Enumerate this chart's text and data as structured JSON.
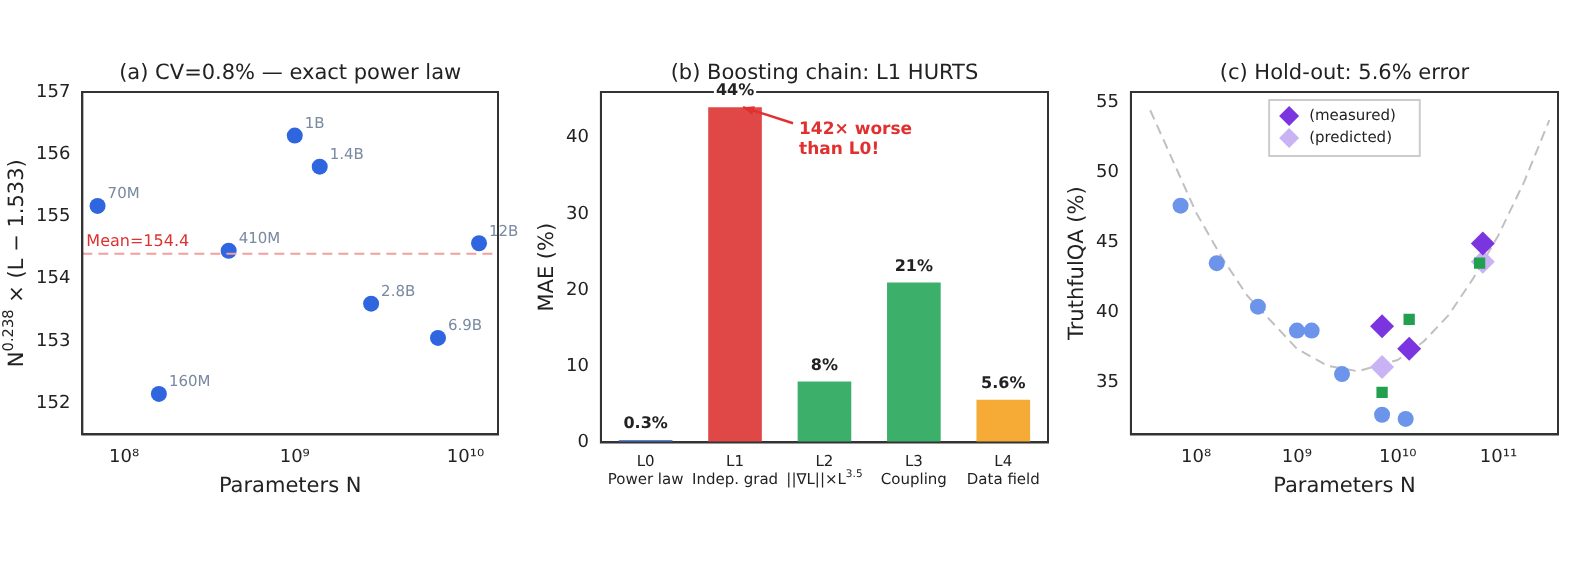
{
  "chart_data": [
    {
      "type": "scatter",
      "title": "(a) CV=0.8% — exact power law",
      "xlabel": "Parameters N",
      "ylabel": "N$^{0.238}$ × (L − 1.533)",
      "log": "x",
      "marker": "circle",
      "color": "#2f66e0",
      "x": [
        70000000,
        160000000,
        410000000,
        1000000000,
        1400000000,
        2800000000,
        6900000000,
        12000000000
      ],
      "values": [
        155.17,
        152.15,
        154.45,
        156.3,
        155.8,
        153.6,
        153.05,
        154.57
      ],
      "xlim": [
        57000000,
        15500000000
      ],
      "xticks": [
        {
          "value": 100000000,
          "label": "10⁸"
        },
        {
          "value": 1000000000,
          "label": "10⁹"
        },
        {
          "value": 10000000000,
          "label": "10¹⁰"
        }
      ],
      "ylim": [
        151.5,
        157
      ],
      "yticks": [
        152,
        153,
        154,
        155,
        156,
        157
      ],
      "ref_lines": [
        {
          "axis": "y",
          "value": 154.4,
          "label": "Mean=154.4",
          "color": "#f4a0a0",
          "line_style": "dashed"
        }
      ],
      "annotations": [
        {
          "text": "70M",
          "x": 70000000,
          "y": 155.17
        },
        {
          "text": "160M",
          "x": 160000000,
          "y": 152.15
        },
        {
          "text": "410M",
          "x": 410000000,
          "y": 154.45
        },
        {
          "text": "1B",
          "x": 1000000000,
          "y": 156.3
        },
        {
          "text": "1.4B",
          "x": 1400000000,
          "y": 155.8
        },
        {
          "text": "2.8B",
          "x": 2800000000,
          "y": 153.6
        },
        {
          "text": "6.9B",
          "x": 6900000000,
          "y": 153.05
        },
        {
          "text": "12B",
          "x": 12000000000,
          "y": 154.57
        }
      ]
    },
    {
      "type": "bar",
      "title": "(b) Boosting chain: L1 HURTS",
      "ylabel": "MAE (%)",
      "categories": [
        "L0\nPower law",
        "L1\nIndep. grad",
        "L2\n||∇L||×L$^{3.5}$",
        "L3\nCoupling",
        "L4\nData field"
      ],
      "values": [
        0.3,
        44,
        8,
        21,
        5.6
      ],
      "colors": [
        "#5b7fd6",
        "#e04848",
        "#3cb06a",
        "#3cb06a",
        "#f5ab35"
      ],
      "value_labels": [
        "0.3%",
        "44%",
        "8%",
        "21%",
        "5.6%"
      ],
      "ylim": [
        0,
        46
      ],
      "yticks": [
        0,
        10,
        20,
        30,
        40
      ],
      "annotations": [
        {
          "text": "142× worse\nthan L0!",
          "x": "L1\nIndep. grad",
          "y": 44
        }
      ]
    },
    {
      "type": "scatter",
      "title": "(c) Hold-out: 5.6% error",
      "xlabel": "Parameters N",
      "ylabel": "TruthfulQA (%)",
      "log": "x",
      "legend": "top",
      "xlim": [
        22500000,
        390000000000
      ],
      "xticks": [
        {
          "value": 100000000,
          "label": "10⁸"
        },
        {
          "value": 1000000000,
          "label": "10⁹"
        },
        {
          "value": 10000000000,
          "label": "10¹⁰"
        },
        {
          "value": 100000000000,
          "label": "10¹¹"
        }
      ],
      "ylim": [
        31.3,
        55.7
      ],
      "yticks": [
        35,
        40,
        45,
        50,
        55
      ],
      "series": [
        {
          "type": "line",
          "color": "#c0c0c0",
          "marker": "none",
          "line_style": "dashed",
          "x": [
            35000000,
            100000000,
            180000000,
            320000000,
            1000000000,
            2000000000,
            4000000000,
            10000000000,
            18000000000,
            32000000000,
            56000000000,
            100000000000,
            180000000000,
            320000000000
          ],
          "values": [
            54.4,
            47.1,
            43.9,
            41.2,
            37.4,
            36.2,
            35.8,
            36.6,
            37.9,
            39.8,
            42.4,
            45.5,
            49.3,
            53.7
          ]
        },
        {
          "color": "#6b94ea",
          "marker": "circle",
          "x": [
            70000000,
            160000000,
            410000000,
            1000000000,
            1400000000,
            2800000000,
            7000000000,
            12000000000
          ],
          "values": [
            47.6,
            43.5,
            40.4,
            38.7,
            38.7,
            35.6,
            32.7,
            32.4
          ]
        },
        {
          "color": "#22a050",
          "marker": "square",
          "x": [
            7000000000,
            13000000000,
            65000000000
          ],
          "values": [
            34.3,
            39.5,
            43.5
          ]
        },
        {
          "name": "(measured)",
          "color": "#7b35e0",
          "marker": "diamond",
          "x": [
            7000000000,
            13000000000,
            70000000000
          ],
          "values": [
            39.0,
            37.4,
            44.9
          ]
        },
        {
          "name": "(predicted)",
          "color": "#c9b3f5",
          "marker": "diamond",
          "x": [
            7000000000,
            13000000000,
            70000000000
          ],
          "values": [
            36.1,
            null,
            43.6
          ]
        }
      ]
    }
  ]
}
